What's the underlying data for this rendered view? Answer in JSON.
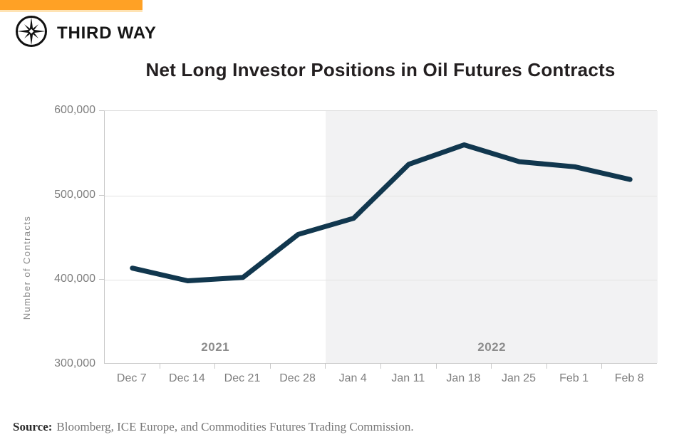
{
  "brand": {
    "name": "THIRD WAY",
    "bar_color": "#FFA125",
    "bar_edge_color": "#FFE3B3",
    "icon": "compass-star-icon",
    "icon_color": "#111111"
  },
  "chart_data": {
    "type": "line",
    "title": "Net Long Investor Positions in Oil Futures Contracts",
    "ylabel": "Number of Contracts",
    "xlabel": "",
    "categories": [
      "Dec 7",
      "Dec 14",
      "Dec 21",
      "Dec 28",
      "Jan 4",
      "Jan 11",
      "Jan 18",
      "Jan 25",
      "Feb 1",
      "Feb 8"
    ],
    "values": [
      414000,
      399000,
      403000,
      454000,
      473000,
      537000,
      560000,
      540000,
      534000,
      519000
    ],
    "ylim": [
      300000,
      600000
    ],
    "ytick_values": [
      600000,
      500000,
      400000,
      300000
    ],
    "ytick_labels": [
      "600,000",
      "500,000",
      "400,000",
      "300,000"
    ],
    "grid": "horizontal",
    "legend": "none",
    "line_color": "#11374E",
    "shade_color": "#F2F2F3",
    "regions": [
      {
        "label": "2021",
        "categories": 4,
        "shaded": false
      },
      {
        "label": "2022",
        "categories": 6,
        "shaded": true
      }
    ]
  },
  "source": {
    "label": "Source:",
    "text": "Bloomberg, ICE Europe, and Commodities Futures Trading Commission."
  }
}
